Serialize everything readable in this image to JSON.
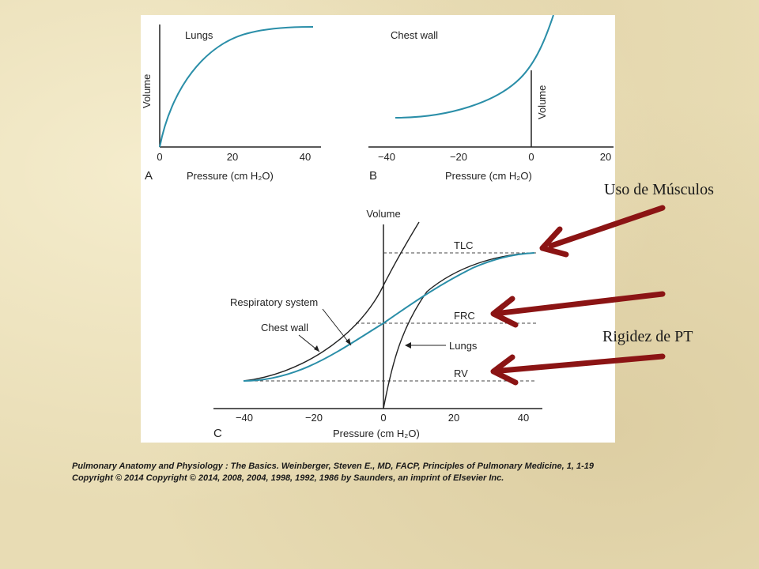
{
  "panel_a": {
    "curve_label": "Lungs",
    "y_label": "Volume",
    "x_ticks": [
      "0",
      "20",
      "40"
    ],
    "x_label": "Pressure (cm H₂O)",
    "panel_letter": "A"
  },
  "panel_b": {
    "curve_label": "Chest wall",
    "y_label": "Volume",
    "x_ticks": [
      "−40",
      "−20",
      "0",
      "20"
    ],
    "x_label": "Pressure (cm H₂O)",
    "panel_letter": "B"
  },
  "panel_c": {
    "y_label": "Volume",
    "x_ticks": [
      "−40",
      "−20",
      "0",
      "20",
      "40"
    ],
    "x_label": "Pressure (cm H₂O)",
    "panel_letter": "C",
    "levels": [
      "TLC",
      "FRC",
      "RV"
    ],
    "labels": {
      "respiratory_system": "Respiratory system",
      "chest_wall": "Chest wall",
      "lungs": "Lungs"
    }
  },
  "annotations": {
    "top": "Uso de Músculos",
    "bottom": "Rigidez de PT"
  },
  "colors": {
    "lung_curve": "#2a8ea8",
    "arrow": "#8b1414"
  },
  "citation": {
    "line1": "Pulmonary Anatomy and Physiology : The Basics. Weinberger, Steven E., MD, FACP, Principles of Pulmonary Medicine, 1, 1-19",
    "line2": "Copyright © 2014   Copyright © 2014, 2008, 2004, 1998, 1992, 1986 by Saunders, an imprint of Elsevier Inc."
  }
}
